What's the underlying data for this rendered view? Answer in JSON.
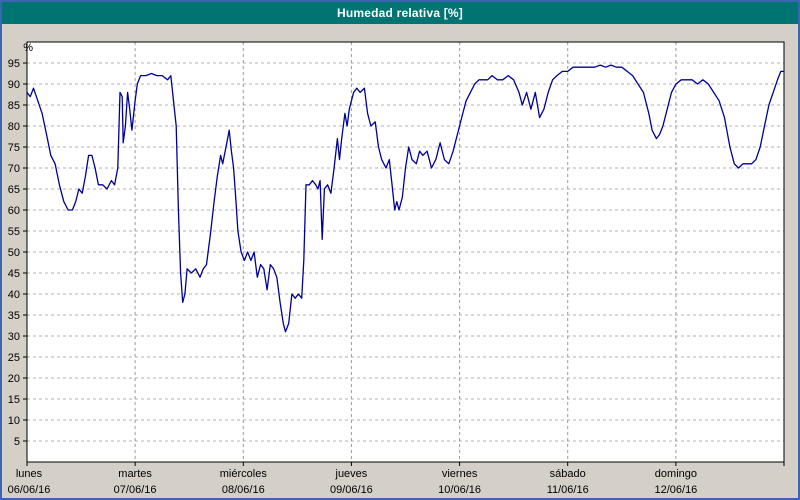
{
  "window": {
    "title": "Humedad relativa [%]"
  },
  "colors": {
    "outer_border": "#3a66b0",
    "titlebar_bg": "#007373",
    "titlebar_text": "#ffffff",
    "panel_bg": "#d4d0c8",
    "plot_bg": "#ffffff",
    "grid": "#b0b0b0",
    "day_grid": "#9a9a9a",
    "axis": "#000000",
    "line": "#000099"
  },
  "chart_data": {
    "type": "line",
    "title": "Humedad relativa [%]",
    "ylabel": "%",
    "xlabel": "",
    "ylim": [
      0,
      100
    ],
    "xlim_days": [
      0,
      7
    ],
    "grid": "dashed",
    "legend": "none",
    "yticks": [
      95,
      90,
      85,
      80,
      75,
      70,
      65,
      60,
      55,
      50,
      45,
      40,
      35,
      30,
      25,
      20,
      15,
      10,
      5
    ],
    "days": [
      {
        "name": "lunes",
        "date": "06/06/16"
      },
      {
        "name": "martes",
        "date": "07/06/16"
      },
      {
        "name": "miércoles",
        "date": "08/06/16"
      },
      {
        "name": "jueves",
        "date": "09/06/16"
      },
      {
        "name": "viernes",
        "date": "10/06/16"
      },
      {
        "name": "sábado",
        "date": "11/06/16"
      },
      {
        "name": "domingo",
        "date": "12/06/16"
      }
    ],
    "series": [
      {
        "name": "Humedad relativa",
        "color": "#000099",
        "points": [
          [
            0.0,
            88
          ],
          [
            0.03,
            87
          ],
          [
            0.06,
            89
          ],
          [
            0.1,
            86
          ],
          [
            0.14,
            83
          ],
          [
            0.18,
            78
          ],
          [
            0.22,
            73
          ],
          [
            0.26,
            71
          ],
          [
            0.3,
            66
          ],
          [
            0.34,
            62
          ],
          [
            0.38,
            60
          ],
          [
            0.42,
            60
          ],
          [
            0.45,
            62
          ],
          [
            0.48,
            65
          ],
          [
            0.51,
            64
          ],
          [
            0.54,
            68
          ],
          [
            0.57,
            73
          ],
          [
            0.6,
            73
          ],
          [
            0.63,
            70
          ],
          [
            0.66,
            66
          ],
          [
            0.7,
            66
          ],
          [
            0.74,
            65
          ],
          [
            0.78,
            67
          ],
          [
            0.81,
            66
          ],
          [
            0.84,
            70
          ],
          [
            0.86,
            88
          ],
          [
            0.88,
            87
          ],
          [
            0.89,
            76
          ],
          [
            0.91,
            80
          ],
          [
            0.93,
            88
          ],
          [
            0.95,
            84
          ],
          [
            0.97,
            79
          ],
          [
            1.0,
            86
          ],
          [
            1.02,
            90
          ],
          [
            1.05,
            92
          ],
          [
            1.1,
            92
          ],
          [
            1.15,
            92.5
          ],
          [
            1.2,
            92
          ],
          [
            1.25,
            92
          ],
          [
            1.3,
            91
          ],
          [
            1.33,
            92
          ],
          [
            1.38,
            80
          ],
          [
            1.4,
            60
          ],
          [
            1.42,
            45
          ],
          [
            1.44,
            38
          ],
          [
            1.46,
            40
          ],
          [
            1.48,
            46
          ],
          [
            1.52,
            45
          ],
          [
            1.56,
            46
          ],
          [
            1.6,
            44
          ],
          [
            1.63,
            46
          ],
          [
            1.66,
            47
          ],
          [
            1.7,
            55
          ],
          [
            1.73,
            62
          ],
          [
            1.76,
            68
          ],
          [
            1.79,
            73
          ],
          [
            1.81,
            71
          ],
          [
            1.84,
            75
          ],
          [
            1.87,
            79
          ],
          [
            1.89,
            74
          ],
          [
            1.91,
            70
          ],
          [
            1.93,
            63
          ],
          [
            1.95,
            55
          ],
          [
            1.98,
            50
          ],
          [
            2.01,
            48
          ],
          [
            2.04,
            50
          ],
          [
            2.07,
            48
          ],
          [
            2.1,
            50
          ],
          [
            2.13,
            44
          ],
          [
            2.16,
            47
          ],
          [
            2.19,
            46
          ],
          [
            2.22,
            41
          ],
          [
            2.25,
            47
          ],
          [
            2.28,
            46
          ],
          [
            2.31,
            44
          ],
          [
            2.34,
            38
          ],
          [
            2.37,
            33
          ],
          [
            2.39,
            31
          ],
          [
            2.42,
            33
          ],
          [
            2.45,
            40
          ],
          [
            2.48,
            39
          ],
          [
            2.51,
            40
          ],
          [
            2.54,
            39
          ],
          [
            2.56,
            48
          ],
          [
            2.58,
            66
          ],
          [
            2.61,
            66
          ],
          [
            2.64,
            67
          ],
          [
            2.67,
            66
          ],
          [
            2.69,
            65
          ],
          [
            2.71,
            67
          ],
          [
            2.73,
            53
          ],
          [
            2.75,
            65
          ],
          [
            2.78,
            66
          ],
          [
            2.81,
            64
          ],
          [
            2.84,
            70
          ],
          [
            2.87,
            77
          ],
          [
            2.89,
            72
          ],
          [
            2.91,
            77
          ],
          [
            2.94,
            83
          ],
          [
            2.96,
            80
          ],
          [
            2.98,
            84
          ],
          [
            3.02,
            88
          ],
          [
            3.05,
            89
          ],
          [
            3.08,
            88
          ],
          [
            3.12,
            89
          ],
          [
            3.15,
            83
          ],
          [
            3.18,
            80
          ],
          [
            3.22,
            81
          ],
          [
            3.25,
            75
          ],
          [
            3.28,
            72
          ],
          [
            3.32,
            70
          ],
          [
            3.35,
            72
          ],
          [
            3.38,
            65
          ],
          [
            3.4,
            60
          ],
          [
            3.42,
            62
          ],
          [
            3.44,
            60
          ],
          [
            3.47,
            63
          ],
          [
            3.5,
            70
          ],
          [
            3.53,
            75
          ],
          [
            3.56,
            72
          ],
          [
            3.6,
            71
          ],
          [
            3.63,
            74
          ],
          [
            3.66,
            73
          ],
          [
            3.7,
            74
          ],
          [
            3.74,
            70
          ],
          [
            3.78,
            72
          ],
          [
            3.82,
            76
          ],
          [
            3.86,
            72
          ],
          [
            3.9,
            71
          ],
          [
            3.94,
            74
          ],
          [
            3.98,
            78
          ],
          [
            4.02,
            82
          ],
          [
            4.06,
            86
          ],
          [
            4.1,
            88
          ],
          [
            4.14,
            90
          ],
          [
            4.18,
            91
          ],
          [
            4.22,
            91
          ],
          [
            4.26,
            91
          ],
          [
            4.3,
            92
          ],
          [
            4.35,
            91
          ],
          [
            4.4,
            91
          ],
          [
            4.45,
            92
          ],
          [
            4.5,
            91
          ],
          [
            4.55,
            88
          ],
          [
            4.58,
            85
          ],
          [
            4.62,
            88
          ],
          [
            4.66,
            84
          ],
          [
            4.7,
            88
          ],
          [
            4.74,
            82
          ],
          [
            4.78,
            84
          ],
          [
            4.82,
            88
          ],
          [
            4.86,
            91
          ],
          [
            4.9,
            92
          ],
          [
            4.95,
            93
          ],
          [
            5.0,
            93
          ],
          [
            5.05,
            94
          ],
          [
            5.1,
            94
          ],
          [
            5.15,
            94
          ],
          [
            5.2,
            94
          ],
          [
            5.25,
            94
          ],
          [
            5.3,
            94.5
          ],
          [
            5.35,
            94
          ],
          [
            5.4,
            94.5
          ],
          [
            5.45,
            94
          ],
          [
            5.5,
            94
          ],
          [
            5.55,
            93
          ],
          [
            5.6,
            92
          ],
          [
            5.65,
            90
          ],
          [
            5.7,
            88
          ],
          [
            5.75,
            83
          ],
          [
            5.78,
            79
          ],
          [
            5.82,
            77
          ],
          [
            5.85,
            78
          ],
          [
            5.88,
            80
          ],
          [
            5.92,
            84
          ],
          [
            5.96,
            88
          ],
          [
            6.0,
            90
          ],
          [
            6.05,
            91
          ],
          [
            6.1,
            91
          ],
          [
            6.15,
            91
          ],
          [
            6.2,
            90
          ],
          [
            6.25,
            91
          ],
          [
            6.3,
            90
          ],
          [
            6.35,
            88
          ],
          [
            6.4,
            86
          ],
          [
            6.45,
            82
          ],
          [
            6.5,
            75
          ],
          [
            6.54,
            71
          ],
          [
            6.58,
            70
          ],
          [
            6.62,
            71
          ],
          [
            6.66,
            71
          ],
          [
            6.7,
            71
          ],
          [
            6.74,
            72
          ],
          [
            6.78,
            75
          ],
          [
            6.82,
            80
          ],
          [
            6.86,
            85
          ],
          [
            6.9,
            88
          ],
          [
            6.94,
            91
          ],
          [
            6.97,
            93
          ],
          [
            7.0,
            93
          ]
        ]
      }
    ]
  }
}
